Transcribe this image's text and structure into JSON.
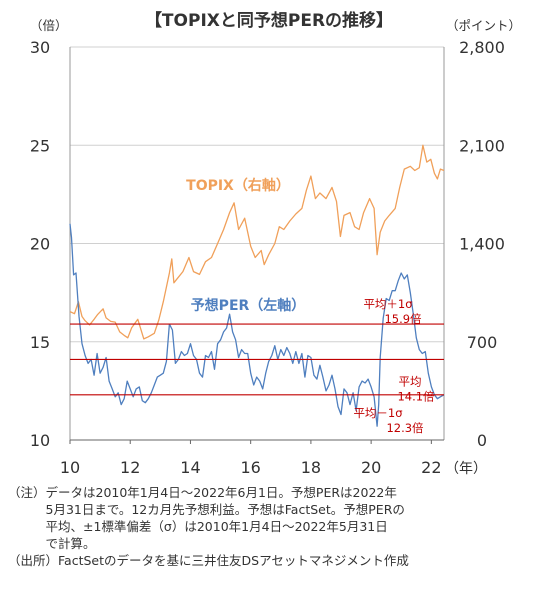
{
  "title": "【TOPIXと同予想PERの推移】",
  "left_unit": "（倍）",
  "right_unit": "（ポイント）",
  "chart_data": {
    "type": "line",
    "x_unit_label": "（年）",
    "x_ticks": [
      "10",
      "12",
      "14",
      "16",
      "18",
      "20",
      "22"
    ],
    "x_range": [
      2010.0,
      2022.42
    ],
    "y_left": {
      "ticks": [
        "10",
        "15",
        "20",
        "25",
        "30"
      ],
      "range": [
        10,
        30
      ]
    },
    "y_right": {
      "ticks": [
        "0",
        "700",
        "1,400",
        "2,100",
        "2,800"
      ],
      "range": [
        0,
        2800
      ]
    },
    "grid": "horizontal",
    "series": [
      {
        "name": "TOPIX（右軸）",
        "axis": "right",
        "color": "#f0a05a",
        "points": [
          [
            2010.0,
            915
          ],
          [
            2010.15,
            900
          ],
          [
            2010.28,
            985
          ],
          [
            2010.4,
            880
          ],
          [
            2010.5,
            850
          ],
          [
            2010.65,
            820
          ],
          [
            2010.8,
            860
          ],
          [
            2010.92,
            895
          ],
          [
            2011.1,
            935
          ],
          [
            2011.2,
            870
          ],
          [
            2011.35,
            845
          ],
          [
            2011.5,
            840
          ],
          [
            2011.65,
            770
          ],
          [
            2011.8,
            745
          ],
          [
            2011.92,
            728
          ],
          [
            2012.05,
            800
          ],
          [
            2012.25,
            860
          ],
          [
            2012.45,
            720
          ],
          [
            2012.6,
            735
          ],
          [
            2012.8,
            760
          ],
          [
            2012.95,
            855
          ],
          [
            2013.1,
            985
          ],
          [
            2013.3,
            1190
          ],
          [
            2013.38,
            1290
          ],
          [
            2013.45,
            1120
          ],
          [
            2013.6,
            1160
          ],
          [
            2013.75,
            1200
          ],
          [
            2013.95,
            1300
          ],
          [
            2014.1,
            1200
          ],
          [
            2014.3,
            1180
          ],
          [
            2014.5,
            1270
          ],
          [
            2014.7,
            1300
          ],
          [
            2014.9,
            1400
          ],
          [
            2015.1,
            1500
          ],
          [
            2015.3,
            1620
          ],
          [
            2015.45,
            1690
          ],
          [
            2015.6,
            1500
          ],
          [
            2015.8,
            1580
          ],
          [
            2016.0,
            1380
          ],
          [
            2016.15,
            1300
          ],
          [
            2016.35,
            1350
          ],
          [
            2016.45,
            1250
          ],
          [
            2016.6,
            1320
          ],
          [
            2016.8,
            1400
          ],
          [
            2016.95,
            1520
          ],
          [
            2017.1,
            1500
          ],
          [
            2017.3,
            1560
          ],
          [
            2017.5,
            1610
          ],
          [
            2017.7,
            1650
          ],
          [
            2017.85,
            1780
          ],
          [
            2018.0,
            1880
          ],
          [
            2018.15,
            1720
          ],
          [
            2018.3,
            1760
          ],
          [
            2018.5,
            1720
          ],
          [
            2018.7,
            1800
          ],
          [
            2018.85,
            1700
          ],
          [
            2018.98,
            1450
          ],
          [
            2019.1,
            1600
          ],
          [
            2019.3,
            1620
          ],
          [
            2019.45,
            1520
          ],
          [
            2019.6,
            1500
          ],
          [
            2019.75,
            1620
          ],
          [
            2019.95,
            1720
          ],
          [
            2020.1,
            1650
          ],
          [
            2020.2,
            1320
          ],
          [
            2020.3,
            1480
          ],
          [
            2020.45,
            1560
          ],
          [
            2020.6,
            1600
          ],
          [
            2020.8,
            1650
          ],
          [
            2020.95,
            1800
          ],
          [
            2021.1,
            1930
          ],
          [
            2021.3,
            1950
          ],
          [
            2021.45,
            1920
          ],
          [
            2021.6,
            1940
          ],
          [
            2021.72,
            2100
          ],
          [
            2021.85,
            1980
          ],
          [
            2021.98,
            2000
          ],
          [
            2022.1,
            1900
          ],
          [
            2022.2,
            1860
          ],
          [
            2022.3,
            1930
          ],
          [
            2022.42,
            1920
          ]
        ]
      },
      {
        "name": "予想PER（左軸）",
        "axis": "left",
        "color": "#4f7fbf",
        "points": [
          [
            2010.0,
            21.0
          ],
          [
            2010.05,
            20.3
          ],
          [
            2010.12,
            18.4
          ],
          [
            2010.2,
            18.5
          ],
          [
            2010.3,
            16.3
          ],
          [
            2010.4,
            14.9
          ],
          [
            2010.5,
            14.3
          ],
          [
            2010.6,
            13.9
          ],
          [
            2010.7,
            14.1
          ],
          [
            2010.8,
            13.3
          ],
          [
            2010.9,
            14.4
          ],
          [
            2011.0,
            13.4
          ],
          [
            2011.1,
            13.7
          ],
          [
            2011.2,
            14.2
          ],
          [
            2011.3,
            13.0
          ],
          [
            2011.4,
            12.6
          ],
          [
            2011.5,
            12.2
          ],
          [
            2011.6,
            12.4
          ],
          [
            2011.7,
            11.8
          ],
          [
            2011.8,
            12.1
          ],
          [
            2011.9,
            13.0
          ],
          [
            2012.0,
            12.6
          ],
          [
            2012.1,
            12.2
          ],
          [
            2012.2,
            12.6
          ],
          [
            2012.3,
            12.7
          ],
          [
            2012.4,
            12.0
          ],
          [
            2012.5,
            11.9
          ],
          [
            2012.6,
            12.1
          ],
          [
            2012.7,
            12.4
          ],
          [
            2012.8,
            12.8
          ],
          [
            2012.9,
            13.2
          ],
          [
            2013.0,
            13.3
          ],
          [
            2013.1,
            13.4
          ],
          [
            2013.2,
            14.0
          ],
          [
            2013.3,
            15.9
          ],
          [
            2013.4,
            15.6
          ],
          [
            2013.5,
            13.9
          ],
          [
            2013.6,
            14.1
          ],
          [
            2013.7,
            14.5
          ],
          [
            2013.8,
            14.3
          ],
          [
            2013.9,
            14.4
          ],
          [
            2014.0,
            14.9
          ],
          [
            2014.1,
            14.3
          ],
          [
            2014.2,
            14.1
          ],
          [
            2014.3,
            13.4
          ],
          [
            2014.4,
            13.2
          ],
          [
            2014.5,
            14.3
          ],
          [
            2014.6,
            14.2
          ],
          [
            2014.7,
            14.5
          ],
          [
            2014.8,
            13.6
          ],
          [
            2014.9,
            14.9
          ],
          [
            2015.0,
            15.1
          ],
          [
            2015.1,
            15.5
          ],
          [
            2015.2,
            15.7
          ],
          [
            2015.3,
            16.4
          ],
          [
            2015.4,
            15.5
          ],
          [
            2015.5,
            15.1
          ],
          [
            2015.6,
            14.2
          ],
          [
            2015.7,
            14.6
          ],
          [
            2015.8,
            14.4
          ],
          [
            2015.9,
            14.4
          ],
          [
            2016.0,
            13.4
          ],
          [
            2016.1,
            12.8
          ],
          [
            2016.2,
            13.2
          ],
          [
            2016.3,
            13.0
          ],
          [
            2016.4,
            12.6
          ],
          [
            2016.5,
            13.4
          ],
          [
            2016.6,
            14.0
          ],
          [
            2016.7,
            14.3
          ],
          [
            2016.8,
            14.8
          ],
          [
            2016.9,
            14.1
          ],
          [
            2017.0,
            14.6
          ],
          [
            2017.1,
            14.3
          ],
          [
            2017.2,
            14.7
          ],
          [
            2017.3,
            14.4
          ],
          [
            2017.4,
            13.9
          ],
          [
            2017.5,
            14.5
          ],
          [
            2017.6,
            13.9
          ],
          [
            2017.7,
            14.4
          ],
          [
            2017.8,
            13.2
          ],
          [
            2017.9,
            14.3
          ],
          [
            2018.0,
            14.2
          ],
          [
            2018.1,
            13.3
          ],
          [
            2018.2,
            13.1
          ],
          [
            2018.3,
            13.8
          ],
          [
            2018.4,
            13.2
          ],
          [
            2018.5,
            12.5
          ],
          [
            2018.6,
            12.8
          ],
          [
            2018.7,
            13.3
          ],
          [
            2018.8,
            12.6
          ],
          [
            2018.9,
            11.7
          ],
          [
            2019.0,
            11.3
          ],
          [
            2019.1,
            12.6
          ],
          [
            2019.2,
            12.4
          ],
          [
            2019.3,
            11.8
          ],
          [
            2019.4,
            12.4
          ],
          [
            2019.5,
            11.5
          ],
          [
            2019.6,
            12.7
          ],
          [
            2019.7,
            13.0
          ],
          [
            2019.8,
            12.9
          ],
          [
            2019.9,
            13.1
          ],
          [
            2020.0,
            12.7
          ],
          [
            2020.1,
            12.2
          ],
          [
            2020.2,
            10.7
          ],
          [
            2020.25,
            11.8
          ],
          [
            2020.3,
            14.2
          ],
          [
            2020.4,
            16.2
          ],
          [
            2020.5,
            17.2
          ],
          [
            2020.6,
            17.1
          ],
          [
            2020.7,
            17.6
          ],
          [
            2020.8,
            17.6
          ],
          [
            2020.9,
            18.1
          ],
          [
            2021.0,
            18.5
          ],
          [
            2021.1,
            18.2
          ],
          [
            2021.2,
            18.4
          ],
          [
            2021.3,
            17.5
          ],
          [
            2021.4,
            16.4
          ],
          [
            2021.5,
            15.2
          ],
          [
            2021.6,
            14.6
          ],
          [
            2021.7,
            14.4
          ],
          [
            2021.8,
            14.5
          ],
          [
            2021.9,
            13.4
          ],
          [
            2022.0,
            12.7
          ],
          [
            2022.1,
            12.3
          ],
          [
            2022.2,
            12.1
          ],
          [
            2022.3,
            12.2
          ],
          [
            2022.42,
            12.3
          ]
        ]
      }
    ],
    "reference_lines": [
      {
        "axis": "left",
        "value": 15.9,
        "label_top": "平均＋1σ",
        "label_bottom": "15.9倍"
      },
      {
        "axis": "left",
        "value": 14.1,
        "label_top": "平均",
        "label_bottom": "14.1倍"
      },
      {
        "axis": "left",
        "value": 12.3,
        "label_top": "平均－1σ",
        "label_bottom": "12.3倍"
      }
    ],
    "reference_color": "#c00000"
  },
  "notes": [
    "（注）データは2010年1月4日～2022年6月1日。予想PERは2022年",
    "　　　5月31日まで。12カ月先予想利益。予想はFactSet。予想PERの",
    "　　　平均、±1標準偏差（σ）は2010年1月4日～2022年5月31日",
    "　　　で計算。",
    "（出所）FactSetのデータを基に三井住友DSアセットマネジメント作成"
  ]
}
